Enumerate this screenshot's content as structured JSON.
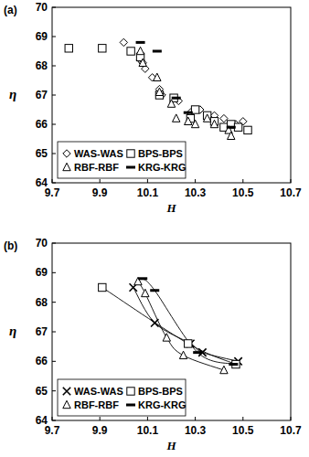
{
  "chart_data": [
    {
      "type": "scatter",
      "title": "(a)",
      "x_label": "H",
      "y_label": "η",
      "xlim": [
        9.7,
        10.7
      ],
      "ylim": [
        64,
        70
      ],
      "xticks": [
        9.7,
        9.9,
        10.1,
        10.3,
        10.5,
        10.7
      ],
      "yticks": [
        64,
        65,
        66,
        67,
        68,
        69,
        70
      ],
      "legend": "lower left",
      "series": [
        {
          "name": "WAS-WAS",
          "color": "#000000",
          "marker": "diamond",
          "x": [
            10.0,
            10.07,
            10.08,
            10.09,
            10.12,
            10.15,
            10.16,
            10.23,
            10.28,
            10.32,
            10.38,
            10.42,
            10.47,
            10.5
          ],
          "values": [
            68.8,
            68.2,
            68.1,
            67.9,
            67.6,
            67.2,
            67.0,
            66.8,
            66.4,
            66.5,
            66.3,
            66.2,
            66.0,
            66.1
          ]
        },
        {
          "name": "BPS-BPS",
          "color": "#000000",
          "marker": "square",
          "x": [
            9.77,
            9.91,
            10.03,
            10.07,
            10.15,
            10.21,
            10.28,
            10.3,
            10.35,
            10.38,
            10.42,
            10.45,
            10.48,
            10.52
          ],
          "values": [
            68.6,
            68.6,
            68.5,
            68.3,
            67.0,
            66.9,
            66.2,
            66.5,
            66.3,
            66.1,
            65.9,
            66.0,
            65.9,
            65.8
          ]
        },
        {
          "name": "RBF-RBF",
          "color": "#000000",
          "marker": "triangle",
          "x": [
            10.07,
            10.08,
            10.14,
            10.15,
            10.2,
            10.22,
            10.27,
            10.3,
            10.35,
            10.38,
            10.44,
            10.45
          ],
          "values": [
            68.5,
            68.1,
            67.6,
            67.1,
            66.7,
            66.2,
            66.1,
            66.0,
            66.2,
            66.0,
            65.8,
            65.6
          ]
        },
        {
          "name": "KRG-KRG",
          "color": "#000000",
          "marker": "dash",
          "x": [
            10.07,
            10.14,
            10.22,
            10.27,
            10.45
          ],
          "values": [
            68.8,
            68.5,
            66.9,
            66.4,
            65.9
          ]
        }
      ]
    },
    {
      "type": "scatter",
      "title": "(b)",
      "x_label": "H",
      "y_label": "η",
      "xlim": [
        9.7,
        10.7
      ],
      "ylim": [
        64,
        70
      ],
      "xticks": [
        9.7,
        9.9,
        10.1,
        10.3,
        10.5,
        10.7
      ],
      "yticks": [
        64,
        65,
        66,
        67,
        68,
        69,
        70
      ],
      "legend": "lower left",
      "series": [
        {
          "name": "WAS-WAS",
          "color": "#000000",
          "marker": "cross",
          "line_style": "solid",
          "x": [
            10.04,
            10.13,
            10.28,
            10.33,
            10.48
          ],
          "values": [
            68.5,
            67.3,
            66.6,
            66.3,
            66.0
          ]
        },
        {
          "name": "BPS-BPS",
          "color": "#000000",
          "marker": "square",
          "line_style": "solid",
          "x": [
            9.91,
            10.27,
            10.47
          ],
          "values": [
            68.5,
            66.6,
            65.9
          ]
        },
        {
          "name": "RBF-RBF",
          "color": "#000000",
          "marker": "triangle",
          "line_style": "solid",
          "x": [
            10.06,
            10.09,
            10.18,
            10.25,
            10.42
          ],
          "values": [
            68.7,
            68.3,
            66.8,
            66.2,
            65.7
          ]
        },
        {
          "name": "KRG-KRG",
          "color": "#000000",
          "marker": "dash",
          "line_style": "solid",
          "x": [
            10.08,
            10.13,
            10.31,
            10.46
          ],
          "values": [
            68.8,
            68.4,
            66.3,
            65.9
          ]
        }
      ]
    }
  ]
}
